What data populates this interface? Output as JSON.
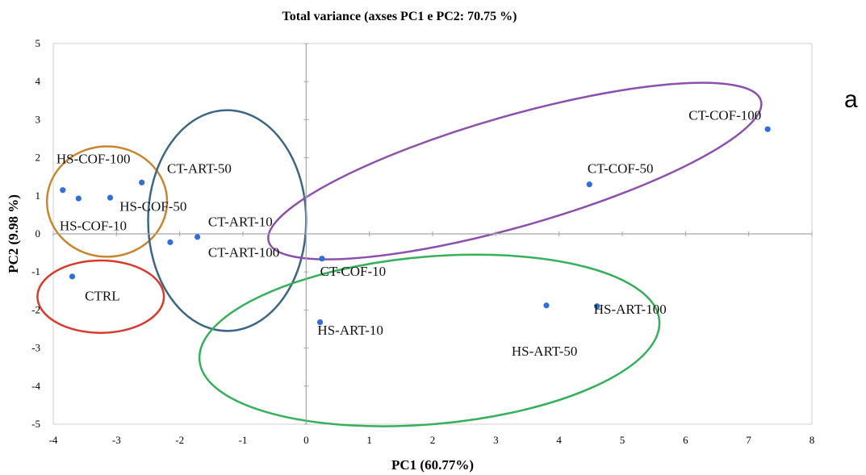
{
  "chart_data": {
    "type": "scatter",
    "title": "Total variance (axses PC1 e PC2: 70.75 %)",
    "xlabel": "PC1 (60.77%)",
    "ylabel": "PC2 (9.98 %)",
    "panel_label": "a",
    "xlim": [
      -4,
      8
    ],
    "ylim": [
      -5,
      5
    ],
    "xticks": [
      -4,
      -3,
      -2,
      -1,
      0,
      1,
      2,
      3,
      4,
      5,
      6,
      7,
      8
    ],
    "yticks": [
      -5,
      -4,
      -3,
      -2,
      -1,
      0,
      1,
      2,
      3,
      4,
      5
    ],
    "grid": false,
    "point_color": "#2f6fd6",
    "points": [
      {
        "x": -3.85,
        "y": 1.15
      },
      {
        "x": -3.6,
        "y": 0.93
      },
      {
        "x": -3.1,
        "y": 0.95
      },
      {
        "x": -2.6,
        "y": 1.35
      },
      {
        "x": -2.15,
        "y": -0.22
      },
      {
        "x": -1.72,
        "y": -0.08
      },
      {
        "x": -3.7,
        "y": -1.12
      },
      {
        "x": 0.25,
        "y": -0.65
      },
      {
        "x": 0.22,
        "y": -2.32
      },
      {
        "x": 3.8,
        "y": -1.88
      },
      {
        "x": 4.6,
        "y": -1.9
      },
      {
        "x": 4.48,
        "y": 1.3
      },
      {
        "x": 7.3,
        "y": 2.75
      }
    ],
    "labels": [
      {
        "text": "HS-COF-100",
        "x": -3.95,
        "y": 1.85
      },
      {
        "text": "CT-ART-50",
        "x": -2.2,
        "y": 1.6
      },
      {
        "text": "HS-COF-50",
        "x": -2.95,
        "y": 0.6
      },
      {
        "text": "HS-COF-10",
        "x": -3.9,
        "y": 0.1
      },
      {
        "text": "CT-ART-10",
        "x": -1.55,
        "y": 0.2
      },
      {
        "text": "CT-ART-100",
        "x": -1.55,
        "y": -0.6
      },
      {
        "text": "CTRL",
        "x": -3.5,
        "y": -1.75
      },
      {
        "text": "CT-COF-10",
        "x": 0.22,
        "y": -1.1
      },
      {
        "text": "HS-ART-10",
        "x": 0.18,
        "y": -2.65
      },
      {
        "text": "HS-ART-50",
        "x": 3.25,
        "y": -3.2
      },
      {
        "text": "HS-ART-100",
        "x": 4.55,
        "y": -2.1
      },
      {
        "text": "CT-COF-50",
        "x": 4.45,
        "y": 1.6
      },
      {
        "text": "CT-COF-100",
        "x": 6.05,
        "y": 3.0
      }
    ],
    "groups": [
      {
        "color": "#c8852e",
        "cx": -3.15,
        "cy": 0.85,
        "rx": 0.95,
        "ry": 1.45,
        "rotate": 0
      },
      {
        "color": "#3d6587",
        "cx": -1.25,
        "cy": 0.35,
        "rx": 1.25,
        "ry": 2.9,
        "rotate": 0
      },
      {
        "color": "#d93a2b",
        "cx": -3.25,
        "cy": -1.65,
        "rx": 1.0,
        "ry": 0.95,
        "rotate": 0
      },
      {
        "color": "#8c4fae",
        "cx": 3.3,
        "cy": 1.65,
        "rx": 4.05,
        "ry": 1.45,
        "rotate": -16
      },
      {
        "color": "#36b05a",
        "cx": 1.95,
        "cy": -2.8,
        "rx": 3.65,
        "ry": 2.2,
        "rotate": -5
      }
    ]
  }
}
